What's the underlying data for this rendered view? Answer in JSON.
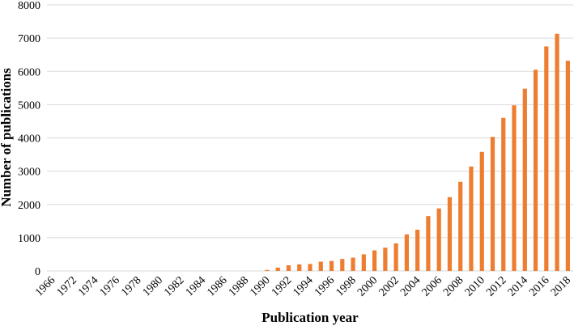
{
  "chart_data": {
    "type": "bar",
    "x_label": "Publication year",
    "y_label": "Number of publications",
    "categories": [
      "1966",
      null,
      "1972",
      null,
      "1974",
      null,
      "1976",
      null,
      "1978",
      null,
      "1980",
      null,
      "1982",
      null,
      "1984",
      null,
      "1986",
      null,
      "1988",
      null,
      "1990",
      null,
      "1992",
      null,
      "1994",
      null,
      "1996",
      null,
      "1998",
      null,
      "2000",
      null,
      "2002",
      null,
      "2004",
      null,
      "2006",
      null,
      "2008",
      null,
      "2010",
      null,
      "2012",
      null,
      "2014",
      null,
      "2016",
      null,
      "2018"
    ],
    "values": [
      0,
      0,
      0,
      0,
      0,
      0,
      0,
      0,
      0,
      0,
      0,
      0,
      0,
      0,
      0,
      0,
      0,
      0,
      0,
      0,
      30,
      100,
      170,
      200,
      210,
      280,
      300,
      360,
      400,
      500,
      620,
      700,
      830,
      1100,
      1240,
      1650,
      1880,
      2220,
      2680,
      3140,
      3580,
      4030,
      4600,
      4980,
      5480,
      6050,
      6750,
      7130,
      6320
    ],
    "color": "#ed7d31",
    "ylim": [
      0,
      8000
    ],
    "yticks": [
      0,
      1000,
      2000,
      3000,
      4000,
      5000,
      6000,
      7000,
      8000
    ],
    "grid": true
  }
}
